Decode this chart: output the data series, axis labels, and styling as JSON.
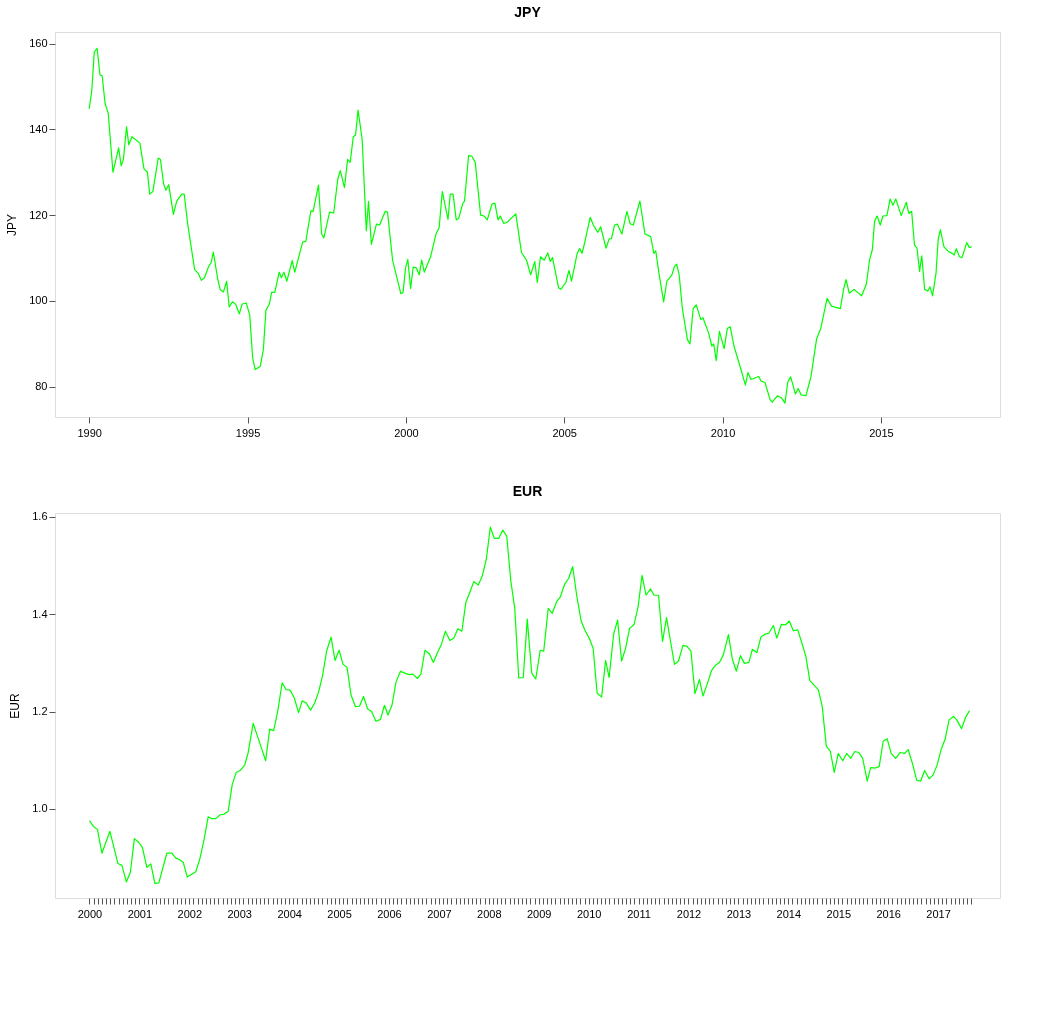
{
  "chart_data": [
    {
      "type": "line",
      "title": "JPY",
      "ylabel": "JPY",
      "xlim": [
        1988.92,
        2018.76
      ],
      "ylim": [
        72.95,
        162.7
      ],
      "xticks": [
        1990,
        1995,
        2000,
        2005,
        2010,
        2015
      ],
      "yticks": [
        80,
        100,
        120,
        140,
        160
      ],
      "x": [
        1990.0,
        1990.08,
        1990.16,
        1990.25,
        1990.34,
        1990.41,
        1990.5,
        1990.6,
        1990.75,
        1990.93,
        1991.01,
        1991.08,
        1991.18,
        1991.25,
        1991.35,
        1991.6,
        1991.73,
        1991.84,
        1991.91,
        1992.01,
        1992.18,
        1992.25,
        1992.35,
        1992.42,
        1992.51,
        1992.66,
        1992.76,
        1992.92,
        1993.0,
        1993.11,
        1993.33,
        1993.44,
        1993.54,
        1993.64,
        1993.77,
        1993.85,
        1993.92,
        1994.06,
        1994.14,
        1994.24,
        1994.34,
        1994.42,
        1994.52,
        1994.62,
        1994.74,
        1994.83,
        1994.96,
        1995.07,
        1995.16,
        1995.24,
        1995.4,
        1995.5,
        1995.58,
        1995.69,
        1995.76,
        1995.86,
        1996.0,
        1996.07,
        1996.15,
        1996.24,
        1996.41,
        1996.49,
        1996.74,
        1996.84,
        1997.0,
        1997.07,
        1997.24,
        1997.34,
        1997.41,
        1997.59,
        1997.72,
        1997.85,
        1997.93,
        1998.06,
        1998.16,
        1998.24,
        1998.34,
        1998.41,
        1998.49,
        1998.62,
        1998.75,
        1998.82,
        1998.91,
        1999.07,
        1999.17,
        1999.35,
        1999.42,
        1999.58,
        1999.84,
        1999.91,
        1999.99,
        2000.06,
        2000.15,
        2000.23,
        2000.33,
        2000.42,
        2000.5,
        2000.58,
        2000.78,
        2000.95,
        2001.05,
        2001.15,
        2001.33,
        2001.4,
        2001.49,
        2001.59,
        2001.67,
        2001.8,
        2001.85,
        2001.98,
        2002.08,
        2002.19,
        2002.36,
        2002.47,
        2002.57,
        2002.72,
        2002.81,
        2002.91,
        2002.98,
        2003.09,
        2003.19,
        2003.47,
        2003.65,
        2003.81,
        2003.94,
        2004.07,
        2004.15,
        2004.25,
        2004.37,
        2004.48,
        2004.56,
        2004.63,
        2004.82,
        2004.89,
        2005.05,
        2005.15,
        2005.23,
        2005.41,
        2005.49,
        2005.56,
        2005.64,
        2005.82,
        2005.92,
        2006.06,
        2006.15,
        2006.32,
        2006.42,
        2006.49,
        2006.59,
        2006.68,
        2006.82,
        2006.98,
        2007.08,
        2007.18,
        2007.39,
        2007.55,
        2007.73,
        2007.83,
        2007.89,
        2007.99,
        2008.14,
        2008.24,
        2008.4,
        2008.48,
        2008.55,
        2008.63,
        2008.73,
        2008.89,
        2008.97,
        2009.07,
        2009.17,
        2009.31,
        2009.38,
        2009.56,
        2009.66,
        2009.72,
        2009.8,
        2009.9,
        2010.05,
        2010.15,
        2010.24,
        2010.36,
        2010.59,
        2010.72,
        2010.8,
        2010.9,
        2011.14,
        2011.22,
        2011.34,
        2011.5,
        2011.57,
        2011.73,
        2011.86,
        2011.97,
        2012.06,
        2012.15,
        2012.3,
        2012.39,
        2012.48,
        2012.63,
        2012.79,
        2012.97,
        2013.1,
        2013.3,
        2013.44,
        2013.72,
        2013.82,
        2013.9,
        2014.0,
        2014.15,
        2014.39,
        2014.54,
        2014.64,
        2014.73,
        2014.8,
        2014.88,
        2014.98,
        2015.06,
        2015.19,
        2015.29,
        2015.38,
        2015.47,
        2015.64,
        2015.8,
        2015.88,
        2015.97,
        2016.06,
        2016.14,
        2016.22,
        2016.29,
        2016.38,
        2016.48,
        2016.55,
        2016.63,
        2016.74,
        2016.81,
        2016.88,
        2016.99,
        2017.12,
        2017.25,
        2017.31,
        2017.38,
        2017.48,
        2017.56,
        2017.71,
        2017.79,
        2017.87
      ],
      "series": [
        {
          "color": "#00ff00",
          "values": [
            144.8,
            148.9,
            158.0,
            158.9,
            152.7,
            152.5,
            146.1,
            143.8,
            130,
            135.7,
            131.5,
            133,
            140.6,
            136.4,
            138.3,
            136.8,
            130.8,
            130,
            124.9,
            125.5,
            133.3,
            133,
            127.3,
            125.8,
            127.1,
            120.2,
            123.2,
            124.9,
            124.9,
            117.9,
            107.3,
            106.5,
            104.8,
            105.4,
            108,
            108.9,
            111.4,
            105,
            102.6,
            102.1,
            104.6,
            98.6,
            99.8,
            99.3,
            97,
            99.3,
            99.5,
            96.7,
            86.8,
            84,
            84.7,
            88.7,
            97.8,
            99.3,
            102,
            102,
            106.7,
            105.4,
            106.7,
            104.6,
            109.4,
            106.7,
            113.7,
            113.9,
            121,
            120.9,
            127,
            115.6,
            114.7,
            120.7,
            120.5,
            128.5,
            130.4,
            126.4,
            133,
            132.3,
            138.3,
            138.7,
            144.5,
            137.6,
            116.4,
            123.2,
            113.2,
            117.9,
            117.7,
            120.9,
            120.7,
            109.5,
            101.7,
            102,
            107.7,
            109.7,
            102.9,
            107.9,
            107.7,
            106.1,
            109.5,
            106.7,
            110.3,
            115.6,
            117.1,
            125.5,
            119,
            124.9,
            124.9,
            118.9,
            119.3,
            122.8,
            123.2,
            133.9,
            133.8,
            132.3,
            120,
            119.8,
            118.9,
            122.6,
            122.8,
            118.9,
            119.8,
            118.1,
            118.3,
            120.3,
            111.3,
            109.5,
            106.1,
            109.2,
            104.3,
            110.3,
            109.5,
            111.2,
            109.2,
            110.1,
            103.1,
            102.7,
            104.3,
            107.1,
            104.6,
            111.1,
            112.2,
            111.1,
            113.4,
            119.5,
            117.7,
            116,
            117.3,
            112.3,
            114.5,
            114.5,
            117.7,
            117.9,
            115.6,
            120.9,
            118,
            117.7,
            123.3,
            115.6,
            115,
            111.1,
            111.7,
            106.5,
            99.8,
            104.6,
            106.1,
            108,
            108.6,
            106.1,
            98.2,
            91,
            90,
            98.2,
            99.1,
            95.7,
            96.1,
            92.5,
            89.5,
            90,
            86.1,
            92.9,
            88.9,
            93.6,
            94,
            89.5,
            83.8,
            80.4,
            83.3,
            81.7,
            82.4,
            81.3,
            81,
            77,
            76.4,
            77.9,
            77.4,
            76.2,
            81.1,
            82.3,
            78.3,
            79.6,
            78.1,
            77.9,
            82.3,
            91.2,
            93.6,
            100.6,
            98.8,
            98.2,
            102.7,
            105,
            101.8,
            102.7,
            101.2,
            103.9,
            109.5,
            112,
            118.6,
            119.8,
            117.7,
            119.8,
            119.9,
            123.8,
            122.3,
            123.8,
            119.9,
            123,
            120.4,
            120.9,
            113,
            112.3,
            106.9,
            110.5,
            102.7,
            102.3,
            103.3,
            101.2,
            106.5,
            114.5,
            116.6,
            112.6,
            111.6,
            111.1,
            110.7,
            112.2,
            110.3,
            110.1,
            113.6,
            112.5,
            112.6
          ]
        }
      ]
    },
    {
      "type": "line",
      "title": "EUR",
      "ylabel": "EUR",
      "xlim": [
        1999.31,
        2018.24
      ],
      "ylim": [
        0.817,
        1.608
      ],
      "yticks": [
        {
          "value": 1,
          "label": "1.0"
        },
        1.2,
        1.4,
        1.6
      ],
      "xticks": [
        2000,
        {
          "value": 2000.083,
          "label": null
        },
        {
          "value": 2000.167,
          "label": null
        },
        {
          "value": 2000.25,
          "label": null
        },
        {
          "value": 2000.333,
          "label": null
        },
        {
          "value": 2000.417,
          "label": null
        },
        {
          "value": 2000.5,
          "label": null
        },
        {
          "value": 2000.583,
          "label": null
        },
        {
          "value": 2000.667,
          "label": null
        },
        {
          "value": 2000.75,
          "label": null
        },
        {
          "value": 2000.833,
          "label": null
        },
        {
          "value": 2000.917,
          "label": null
        },
        2001,
        {
          "value": 2001.083,
          "label": null
        },
        {
          "value": 2001.167,
          "label": null
        },
        {
          "value": 2001.25,
          "label": null
        },
        {
          "value": 2001.333,
          "label": null
        },
        {
          "value": 2001.417,
          "label": null
        },
        {
          "value": 2001.5,
          "label": null
        },
        {
          "value": 2001.583,
          "label": null
        },
        {
          "value": 2001.667,
          "label": null
        },
        {
          "value": 2001.75,
          "label": null
        },
        {
          "value": 2001.833,
          "label": null
        },
        {
          "value": 2001.917,
          "label": null
        },
        2002,
        {
          "value": 2002.083,
          "label": null
        },
        {
          "value": 2002.167,
          "label": null
        },
        {
          "value": 2002.25,
          "label": null
        },
        {
          "value": 2002.333,
          "label": null
        },
        {
          "value": 2002.417,
          "label": null
        },
        {
          "value": 2002.5,
          "label": null
        },
        {
          "value": 2002.583,
          "label": null
        },
        {
          "value": 2002.667,
          "label": null
        },
        {
          "value": 2002.75,
          "label": null
        },
        {
          "value": 2002.833,
          "label": null
        },
        {
          "value": 2002.917,
          "label": null
        },
        2003,
        {
          "value": 2003.083,
          "label": null
        },
        {
          "value": 2003.167,
          "label": null
        },
        {
          "value": 2003.25,
          "label": null
        },
        {
          "value": 2003.333,
          "label": null
        },
        {
          "value": 2003.417,
          "label": null
        },
        {
          "value": 2003.5,
          "label": null
        },
        {
          "value": 2003.583,
          "label": null
        },
        {
          "value": 2003.667,
          "label": null
        },
        {
          "value": 2003.75,
          "label": null
        },
        {
          "value": 2003.833,
          "label": null
        },
        {
          "value": 2003.917,
          "label": null
        },
        2004,
        {
          "value": 2004.083,
          "label": null
        },
        {
          "value": 2004.167,
          "label": null
        },
        {
          "value": 2004.25,
          "label": null
        },
        {
          "value": 2004.333,
          "label": null
        },
        {
          "value": 2004.417,
          "label": null
        },
        {
          "value": 2004.5,
          "label": null
        },
        {
          "value": 2004.583,
          "label": null
        },
        {
          "value": 2004.667,
          "label": null
        },
        {
          "value": 2004.75,
          "label": null
        },
        {
          "value": 2004.833,
          "label": null
        },
        {
          "value": 2004.917,
          "label": null
        },
        2005,
        {
          "value": 2005.083,
          "label": null
        },
        {
          "value": 2005.167,
          "label": null
        },
        {
          "value": 2005.25,
          "label": null
        },
        {
          "value": 2005.333,
          "label": null
        },
        {
          "value": 2005.417,
          "label": null
        },
        {
          "value": 2005.5,
          "label": null
        },
        {
          "value": 2005.583,
          "label": null
        },
        {
          "value": 2005.667,
          "label": null
        },
        {
          "value": 2005.75,
          "label": null
        },
        {
          "value": 2005.833,
          "label": null
        },
        {
          "value": 2005.917,
          "label": null
        },
        2006,
        {
          "value": 2006.083,
          "label": null
        },
        {
          "value": 2006.167,
          "label": null
        },
        {
          "value": 2006.25,
          "label": null
        },
        {
          "value": 2006.333,
          "label": null
        },
        {
          "value": 2006.417,
          "label": null
        },
        {
          "value": 2006.5,
          "label": null
        },
        {
          "value": 2006.583,
          "label": null
        },
        {
          "value": 2006.667,
          "label": null
        },
        {
          "value": 2006.75,
          "label": null
        },
        {
          "value": 2006.833,
          "label": null
        },
        {
          "value": 2006.917,
          "label": null
        },
        2007,
        {
          "value": 2007.083,
          "label": null
        },
        {
          "value": 2007.167,
          "label": null
        },
        {
          "value": 2007.25,
          "label": null
        },
        {
          "value": 2007.333,
          "label": null
        },
        {
          "value": 2007.417,
          "label": null
        },
        {
          "value": 2007.5,
          "label": null
        },
        {
          "value": 2007.583,
          "label": null
        },
        {
          "value": 2007.667,
          "label": null
        },
        {
          "value": 2007.75,
          "label": null
        },
        {
          "value": 2007.833,
          "label": null
        },
        {
          "value": 2007.917,
          "label": null
        },
        2008,
        {
          "value": 2008.083,
          "label": null
        },
        {
          "value": 2008.167,
          "label": null
        },
        {
          "value": 2008.25,
          "label": null
        },
        {
          "value": 2008.333,
          "label": null
        },
        {
          "value": 2008.417,
          "label": null
        },
        {
          "value": 2008.5,
          "label": null
        },
        {
          "value": 2008.583,
          "label": null
        },
        {
          "value": 2008.667,
          "label": null
        },
        {
          "value": 2008.75,
          "label": null
        },
        {
          "value": 2008.833,
          "label": null
        },
        {
          "value": 2008.917,
          "label": null
        },
        2009,
        {
          "value": 2009.083,
          "label": null
        },
        {
          "value": 2009.167,
          "label": null
        },
        {
          "value": 2009.25,
          "label": null
        },
        {
          "value": 2009.333,
          "label": null
        },
        {
          "value": 2009.417,
          "label": null
        },
        {
          "value": 2009.5,
          "label": null
        },
        {
          "value": 2009.583,
          "label": null
        },
        {
          "value": 2009.667,
          "label": null
        },
        {
          "value": 2009.75,
          "label": null
        },
        {
          "value": 2009.833,
          "label": null
        },
        {
          "value": 2009.917,
          "label": null
        },
        2010,
        {
          "value": 2010.083,
          "label": null
        },
        {
          "value": 2010.167,
          "label": null
        },
        {
          "value": 2010.25,
          "label": null
        },
        {
          "value": 2010.333,
          "label": null
        },
        {
          "value": 2010.417,
          "label": null
        },
        {
          "value": 2010.5,
          "label": null
        },
        {
          "value": 2010.583,
          "label": null
        },
        {
          "value": 2010.667,
          "label": null
        },
        {
          "value": 2010.75,
          "label": null
        },
        {
          "value": 2010.833,
          "label": null
        },
        {
          "value": 2010.917,
          "label": null
        },
        2011,
        {
          "value": 2011.083,
          "label": null
        },
        {
          "value": 2011.167,
          "label": null
        },
        {
          "value": 2011.25,
          "label": null
        },
        {
          "value": 2011.333,
          "label": null
        },
        {
          "value": 2011.417,
          "label": null
        },
        {
          "value": 2011.5,
          "label": null
        },
        {
          "value": 2011.583,
          "label": null
        },
        {
          "value": 2011.667,
          "label": null
        },
        {
          "value": 2011.75,
          "label": null
        },
        {
          "value": 2011.833,
          "label": null
        },
        {
          "value": 2011.917,
          "label": null
        },
        2012,
        {
          "value": 2012.083,
          "label": null
        },
        {
          "value": 2012.167,
          "label": null
        },
        {
          "value": 2012.25,
          "label": null
        },
        {
          "value": 2012.333,
          "label": null
        },
        {
          "value": 2012.417,
          "label": null
        },
        {
          "value": 2012.5,
          "label": null
        },
        {
          "value": 2012.583,
          "label": null
        },
        {
          "value": 2012.667,
          "label": null
        },
        {
          "value": 2012.75,
          "label": null
        },
        {
          "value": 2012.833,
          "label": null
        },
        {
          "value": 2012.917,
          "label": null
        },
        2013,
        {
          "value": 2013.083,
          "label": null
        },
        {
          "value": 2013.167,
          "label": null
        },
        {
          "value": 2013.25,
          "label": null
        },
        {
          "value": 2013.333,
          "label": null
        },
        {
          "value": 2013.417,
          "label": null
        },
        {
          "value": 2013.5,
          "label": null
        },
        {
          "value": 2013.583,
          "label": null
        },
        {
          "value": 2013.667,
          "label": null
        },
        {
          "value": 2013.75,
          "label": null
        },
        {
          "value": 2013.833,
          "label": null
        },
        {
          "value": 2013.917,
          "label": null
        },
        2014,
        {
          "value": 2014.083,
          "label": null
        },
        {
          "value": 2014.167,
          "label": null
        },
        {
          "value": 2014.25,
          "label": null
        },
        {
          "value": 2014.333,
          "label": null
        },
        {
          "value": 2014.417,
          "label": null
        },
        {
          "value": 2014.5,
          "label": null
        },
        {
          "value": 2014.583,
          "label": null
        },
        {
          "value": 2014.667,
          "label": null
        },
        {
          "value": 2014.75,
          "label": null
        },
        {
          "value": 2014.833,
          "label": null
        },
        {
          "value": 2014.917,
          "label": null
        },
        2015,
        {
          "value": 2015.083,
          "label": null
        },
        {
          "value": 2015.167,
          "label": null
        },
        {
          "value": 2015.25,
          "label": null
        },
        {
          "value": 2015.333,
          "label": null
        },
        {
          "value": 2015.417,
          "label": null
        },
        {
          "value": 2015.5,
          "label": null
        },
        {
          "value": 2015.583,
          "label": null
        },
        {
          "value": 2015.667,
          "label": null
        },
        {
          "value": 2015.75,
          "label": null
        },
        {
          "value": 2015.833,
          "label": null
        },
        {
          "value": 2015.917,
          "label": null
        },
        2016,
        {
          "value": 2016.083,
          "label": null
        },
        {
          "value": 2016.167,
          "label": null
        },
        {
          "value": 2016.25,
          "label": null
        },
        {
          "value": 2016.333,
          "label": null
        },
        {
          "value": 2016.417,
          "label": null
        },
        {
          "value": 2016.5,
          "label": null
        },
        {
          "value": 2016.583,
          "label": null
        },
        {
          "value": 2016.667,
          "label": null
        },
        {
          "value": 2016.75,
          "label": null
        },
        {
          "value": 2016.833,
          "label": null
        },
        {
          "value": 2016.917,
          "label": null
        },
        2017,
        {
          "value": 2017.083,
          "label": null
        },
        {
          "value": 2017.167,
          "label": null
        },
        {
          "value": 2017.25,
          "label": null
        },
        {
          "value": 2017.333,
          "label": null
        },
        {
          "value": 2017.417,
          "label": null
        },
        {
          "value": 2017.5,
          "label": null
        },
        {
          "value": 2017.583,
          "label": null
        },
        {
          "value": 2017.667,
          "label": null
        }
      ],
      "x": [
        2000.0,
        2000.08,
        2000.16,
        2000.25,
        2000.41,
        2000.49,
        2000.57,
        2000.65,
        2000.74,
        2000.82,
        2000.9,
        2000.99,
        2001.06,
        2001.15,
        2001.23,
        2001.31,
        2001.39,
        2001.55,
        2001.65,
        2001.73,
        2001.8,
        2001.88,
        2001.96,
        2002.13,
        2002.21,
        2002.29,
        2002.38,
        2002.45,
        2002.53,
        2002.62,
        2002.69,
        2002.78,
        2002.86,
        2002.94,
        2003.02,
        2003.11,
        2003.18,
        2003.28,
        2003.36,
        2003.45,
        2003.53,
        2003.61,
        2003.69,
        2003.77,
        2003.86,
        2003.94,
        2004.02,
        2004.1,
        2004.19,
        2004.26,
        2004.34,
        2004.43,
        2004.51,
        2004.59,
        2004.67,
        2004.75,
        2004.84,
        2004.92,
        2005.0,
        2005.08,
        2005.16,
        2005.24,
        2005.33,
        2005.41,
        2005.49,
        2005.57,
        2005.65,
        2005.74,
        2005.83,
        2005.91,
        2005.98,
        2006.06,
        2006.14,
        2006.23,
        2006.32,
        2006.4,
        2006.48,
        2006.57,
        2006.64,
        2006.72,
        2006.81,
        2006.89,
        2006.97,
        2007.05,
        2007.13,
        2007.22,
        2007.3,
        2007.38,
        2007.46,
        2007.54,
        2007.62,
        2007.7,
        2007.79,
        2007.87,
        2007.95,
        2008.03,
        2008.11,
        2008.2,
        2008.28,
        2008.36,
        2008.44,
        2008.52,
        2008.6,
        2008.69,
        2008.77,
        2008.86,
        2008.94,
        2009.03,
        2009.1,
        2009.19,
        2009.27,
        2009.36,
        2009.43,
        2009.52,
        2009.6,
        2009.68,
        2009.76,
        2009.85,
        2009.93,
        2010.01,
        2010.09,
        2010.17,
        2010.26,
        2010.34,
        2010.41,
        2010.5,
        2010.58,
        2010.66,
        2010.74,
        2010.82,
        2010.91,
        2010.99,
        2011.07,
        2011.15,
        2011.24,
        2011.31,
        2011.4,
        2011.48,
        2011.56,
        2011.64,
        2011.72,
        2011.8,
        2011.89,
        2011.97,
        2012.05,
        2012.13,
        2012.22,
        2012.29,
        2012.38,
        2012.46,
        2012.54,
        2012.62,
        2012.7,
        2012.8,
        2012.88,
        2012.96,
        2013.04,
        2013.12,
        2013.21,
        2013.28,
        2013.37,
        2013.45,
        2013.53,
        2013.61,
        2013.7,
        2013.77,
        2013.86,
        2013.94,
        2014.02,
        2014.1,
        2014.19,
        2014.27,
        2014.35,
        2014.43,
        2014.51,
        2014.6,
        2014.68,
        2014.76,
        2014.84,
        2014.92,
        2015.0,
        2015.09,
        2015.17,
        2015.25,
        2015.33,
        2015.41,
        2015.49,
        2015.58,
        2015.65,
        2015.74,
        2015.82,
        2015.9,
        2015.98,
        2016.06,
        2016.15,
        2016.24,
        2016.33,
        2016.4,
        2016.49,
        2016.57,
        2016.65,
        2016.73,
        2016.82,
        2016.9,
        2016.98,
        2017.06,
        2017.14,
        2017.22,
        2017.31,
        2017.38,
        2017.47,
        2017.55,
        2017.63
      ],
      "series": [
        {
          "color": "#00ff00",
          "values": [
            0.976,
            0.964,
            0.958,
            0.909,
            0.954,
            0.921,
            0.888,
            0.884,
            0.85,
            0.87,
            0.939,
            0.931,
            0.921,
            0.88,
            0.887,
            0.847,
            0.848,
            0.909,
            0.909,
            0.899,
            0.896,
            0.89,
            0.86,
            0.871,
            0.897,
            0.934,
            0.984,
            0.98,
            0.98,
            0.988,
            0.989,
            0.995,
            1.05,
            1.075,
            1.079,
            1.09,
            1.116,
            1.176,
            1.151,
            1.124,
            1.099,
            1.164,
            1.161,
            1.2,
            1.259,
            1.245,
            1.244,
            1.229,
            1.198,
            1.222,
            1.218,
            1.203,
            1.217,
            1.24,
            1.274,
            1.324,
            1.353,
            1.305,
            1.326,
            1.297,
            1.291,
            1.234,
            1.21,
            1.211,
            1.231,
            1.206,
            1.2,
            1.18,
            1.184,
            1.213,
            1.193,
            1.213,
            1.26,
            1.283,
            1.279,
            1.276,
            1.277,
            1.268,
            1.277,
            1.326,
            1.319,
            1.301,
            1.321,
            1.338,
            1.365,
            1.346,
            1.351,
            1.37,
            1.365,
            1.424,
            1.445,
            1.467,
            1.46,
            1.479,
            1.513,
            1.579,
            1.556,
            1.556,
            1.573,
            1.56,
            1.469,
            1.412,
            1.269,
            1.27,
            1.39,
            1.279,
            1.267,
            1.326,
            1.324,
            1.412,
            1.402,
            1.426,
            1.435,
            1.462,
            1.474,
            1.498,
            1.439,
            1.386,
            1.366,
            1.351,
            1.33,
            1.238,
            1.23,
            1.305,
            1.27,
            1.359,
            1.388,
            1.304,
            1.33,
            1.371,
            1.379,
            1.415,
            1.48,
            1.439,
            1.452,
            1.439,
            1.439,
            1.344,
            1.393,
            1.344,
            1.297,
            1.304,
            1.336,
            1.334,
            1.324,
            1.237,
            1.266,
            1.232,
            1.258,
            1.284,
            1.295,
            1.301,
            1.317,
            1.358,
            1.307,
            1.283,
            1.315,
            1.299,
            1.301,
            1.328,
            1.321,
            1.353,
            1.359,
            1.361,
            1.377,
            1.351,
            1.379,
            1.378,
            1.386,
            1.366,
            1.368,
            1.341,
            1.314,
            1.264,
            1.255,
            1.245,
            1.21,
            1.129,
            1.119,
            1.075,
            1.114,
            1.099,
            1.114,
            1.104,
            1.118,
            1.116,
            1.104,
            1.057,
            1.085,
            1.084,
            1.087,
            1.139,
            1.144,
            1.114,
            1.104,
            1.116,
            1.114,
            1.122,
            1.092,
            1.059,
            1.057,
            1.079,
            1.062,
            1.07,
            1.09,
            1.122,
            1.143,
            1.183,
            1.19,
            1.182,
            1.165,
            1.188,
            1.202
          ]
        }
      ]
    }
  ]
}
